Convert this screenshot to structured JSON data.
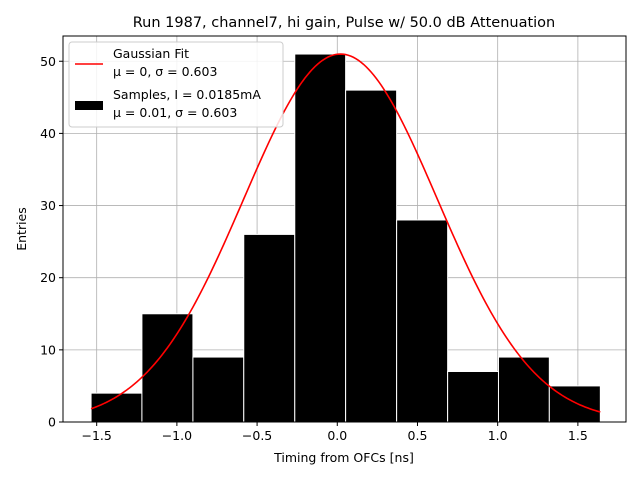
{
  "chart_data": {
    "type": "bar",
    "title": "Run 1987, channel7, hi gain, Pulse w/ 50.0 dB Attenuation",
    "xlabel": "Timing from OFCs [ns]",
    "ylabel": "Entries",
    "xlim": [
      -1.71,
      1.8
    ],
    "ylim": [
      0,
      53.5
    ],
    "grid": true,
    "legend_position": "top-left",
    "x_ticks": [
      -1.5,
      -1.0,
      -0.5,
      0.0,
      0.5,
      1.0,
      1.5
    ],
    "x_tick_labels": [
      "−1.5",
      "−1.0",
      "−0.5",
      "0.0",
      "0.5",
      "1.0",
      "1.5"
    ],
    "y_ticks": [
      0,
      10,
      20,
      30,
      40,
      50
    ],
    "y_tick_labels": [
      "0",
      "10",
      "20",
      "30",
      "40",
      "50"
    ],
    "histogram": {
      "name": "Samples",
      "bin_edges": [
        -1.535,
        -1.218,
        -0.9,
        -0.583,
        -0.265,
        0.052,
        0.37,
        0.688,
        1.005,
        1.322,
        1.64
      ],
      "counts": [
        4,
        15,
        9,
        26,
        51,
        46,
        28,
        7,
        9,
        5
      ],
      "color": "#000000"
    },
    "fit": {
      "name": "Gaussian Fit",
      "mu": 0.02,
      "sigma": 0.603,
      "amplitude": 51,
      "x_range": [
        -1.535,
        1.64
      ],
      "color": "#ff0000"
    },
    "legend": [
      {
        "label_line1": "Gaussian Fit",
        "label_line2": "μ = 0, σ = 0.603",
        "marker": "line",
        "color": "#ff0000"
      },
      {
        "label_line1": "Samples, I = 0.0185mA",
        "label_line2": "μ = 0.01, σ = 0.603",
        "marker": "patch",
        "color": "#000000"
      }
    ]
  }
}
